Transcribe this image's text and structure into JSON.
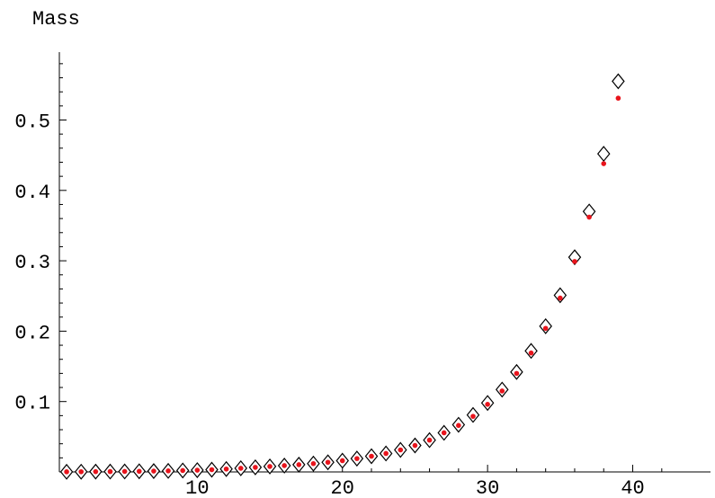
{
  "chart_data": {
    "type": "scatter",
    "title": "",
    "xlabel": "",
    "ylabel": "Mass",
    "xlim": [
      0.5,
      42.5
    ],
    "ylim": [
      0,
      0.6
    ],
    "x_ticks": [
      10,
      20,
      30,
      40
    ],
    "x_tick_labels": [
      "10",
      "20",
      "30",
      "40"
    ],
    "y_ticks": [
      0.1,
      0.2,
      0.3,
      0.4,
      0.5
    ],
    "y_tick_labels": [
      "0.1",
      "0.2",
      "0.3",
      "0.4",
      "0.5"
    ],
    "grid": false,
    "legend": "none",
    "series": [
      {
        "marker": "diamond-open",
        "color": "#000000",
        "x": [
          1,
          2,
          3,
          4,
          5,
          6,
          7,
          8,
          9,
          10,
          11,
          12,
          13,
          14,
          15,
          16,
          17,
          18,
          19,
          20,
          21,
          22,
          23,
          24,
          25,
          26,
          27,
          28,
          29,
          30,
          31,
          32,
          33,
          34,
          35,
          36,
          37,
          38,
          39
        ],
        "values": [
          0.0002,
          0.0003,
          0.0004,
          0.0005,
          0.0007,
          0.0009,
          0.0012,
          0.0015,
          0.002,
          0.0025,
          0.0032,
          0.0041,
          0.0052,
          0.0065,
          0.0078,
          0.009,
          0.0103,
          0.0118,
          0.0137,
          0.016,
          0.019,
          0.0223,
          0.0262,
          0.0313,
          0.0376,
          0.0452,
          0.0556,
          0.067,
          0.081,
          0.098,
          0.117,
          0.142,
          0.172,
          0.207,
          0.251,
          0.305,
          0.37,
          0.452,
          0.555
        ]
      },
      {
        "marker": "dot",
        "color": "#e8141c",
        "x": [
          1,
          2,
          3,
          4,
          5,
          6,
          7,
          8,
          9,
          10,
          11,
          12,
          13,
          14,
          15,
          16,
          17,
          18,
          19,
          20,
          21,
          22,
          23,
          24,
          25,
          26,
          27,
          28,
          29,
          30,
          31,
          32,
          33,
          34,
          35,
          36,
          37,
          38,
          39
        ],
        "values": [
          0.0002,
          0.0003,
          0.0004,
          0.0005,
          0.0007,
          0.0009,
          0.0012,
          0.0015,
          0.002,
          0.0025,
          0.0032,
          0.0041,
          0.0052,
          0.0065,
          0.0078,
          0.009,
          0.0103,
          0.0118,
          0.0137,
          0.016,
          0.019,
          0.0223,
          0.0262,
          0.0313,
          0.0376,
          0.0452,
          0.0556,
          0.066,
          0.079,
          0.096,
          0.115,
          0.14,
          0.169,
          0.204,
          0.247,
          0.299,
          0.362,
          0.438,
          0.531
        ]
      }
    ]
  }
}
